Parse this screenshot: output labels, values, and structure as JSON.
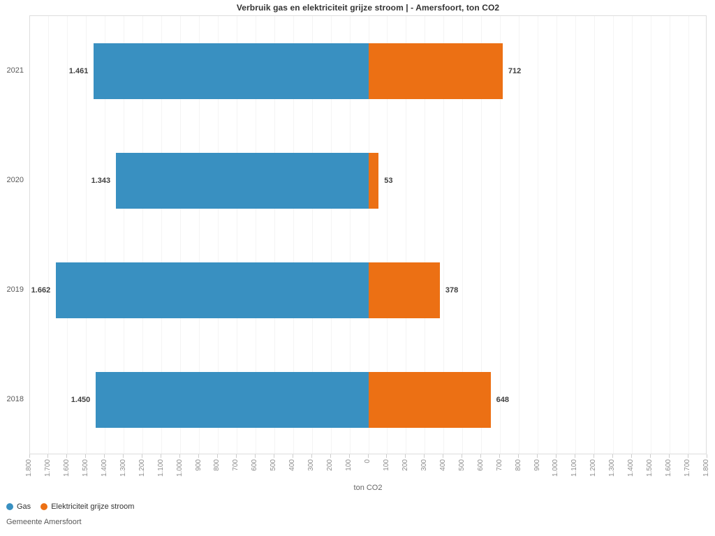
{
  "chart_data": {
    "type": "bar",
    "orientation": "horizontal-diverging",
    "title": "Verbruik gas en elektriciteit grijze stroom | - Amersfoort, ton CO2",
    "categories": [
      "2021",
      "2020",
      "2019",
      "2018"
    ],
    "series": [
      {
        "name": "Gas",
        "color": "#3990C1",
        "direction": "left",
        "values": [
          1461,
          1343,
          1662,
          1450
        ],
        "labels": [
          "1.461",
          "1.343",
          "1.662",
          "1.450"
        ]
      },
      {
        "name": "Elektriciteit grijze stroom",
        "color": "#EC7014",
        "direction": "right",
        "values": [
          712,
          53,
          378,
          648
        ],
        "labels": [
          "712",
          "53",
          "378",
          "648"
        ]
      }
    ],
    "xlabel": "ton CO2",
    "xlim": [
      -1800,
      1800
    ],
    "tick_step": 100,
    "tick_labels": [
      "1.800",
      "1.700",
      "1.600",
      "1.500",
      "1.400",
      "1.300",
      "1.200",
      "1.100",
      "1.000",
      "900",
      "800",
      "700",
      "600",
      "500",
      "400",
      "300",
      "200",
      "100",
      "0",
      "100",
      "200",
      "300",
      "400",
      "500",
      "600",
      "700",
      "800",
      "900",
      "1.000",
      "1.100",
      "1.200",
      "1.300",
      "1.400",
      "1.500",
      "1.600",
      "1.700",
      "1.800"
    ],
    "grid": true,
    "legend_position": "bottom-left"
  },
  "footer": {
    "source": "Gemeente Amersfoort"
  }
}
